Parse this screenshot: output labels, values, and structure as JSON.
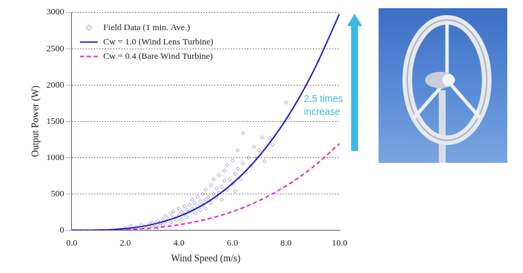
{
  "chart_data": {
    "type": "scatter",
    "x_label": "Wind Speed (m/s)",
    "y_label": "Output Power (W)",
    "xlim": [
      0,
      10
    ],
    "xticks": [
      {
        "value": 0,
        "label": "0.0"
      },
      {
        "value": 2,
        "label": "2.0"
      },
      {
        "value": 4,
        "label": "4.0"
      },
      {
        "value": 6,
        "label": "6.0"
      },
      {
        "value": 8,
        "label": "8.0"
      },
      {
        "value": 10,
        "label": "10.0"
      }
    ],
    "ylim": [
      0,
      3000
    ],
    "yticks": [
      0,
      500,
      1000,
      1500,
      2000,
      2500,
      3000
    ],
    "grid": "y",
    "legend": "upper left",
    "annotation": "2.5 times increase",
    "series": [
      {
        "name": "Field Data (1 min. Ave.)",
        "type": "scatter",
        "marker": "diamond",
        "color": "#7b7bc8",
        "x": [
          1.8,
          2.0,
          2.1,
          2.2,
          2.3,
          2.4,
          2.5,
          2.6,
          2.7,
          2.8,
          2.9,
          3.0,
          3.0,
          3.1,
          3.2,
          3.2,
          3.3,
          3.4,
          3.4,
          3.5,
          3.5,
          3.6,
          3.7,
          3.7,
          3.8,
          3.8,
          3.9,
          4.0,
          4.0,
          4.1,
          4.1,
          4.2,
          4.2,
          4.3,
          4.3,
          4.4,
          4.4,
          4.5,
          4.5,
          4.6,
          4.6,
          4.7,
          4.7,
          4.8,
          4.8,
          4.9,
          4.9,
          5.0,
          5.0,
          5.0,
          5.1,
          5.2,
          5.2,
          5.3,
          5.3,
          5.4,
          5.4,
          5.5,
          5.5,
          5.6,
          5.6,
          5.7,
          5.7,
          5.8,
          5.8,
          5.9,
          6.0,
          6.0,
          6.1,
          6.1,
          6.2,
          6.2,
          6.3,
          6.4,
          6.4,
          6.5,
          6.6,
          6.7,
          6.8,
          6.9,
          7.0,
          7.1,
          7.2,
          7.4,
          7.5,
          8.0,
          8.1,
          9.2
        ],
        "values": [
          10,
          30,
          5,
          60,
          25,
          40,
          15,
          70,
          50,
          30,
          90,
          60,
          110,
          80,
          40,
          130,
          100,
          150,
          70,
          120,
          200,
          160,
          110,
          230,
          180,
          260,
          140,
          200,
          300,
          250,
          150,
          330,
          220,
          280,
          180,
          350,
          260,
          300,
          420,
          240,
          380,
          330,
          460,
          280,
          400,
          500,
          350,
          420,
          300,
          560,
          460,
          380,
          620,
          500,
          700,
          450,
          580,
          520,
          760,
          600,
          420,
          680,
          820,
          560,
          900,
          700,
          640,
          960,
          780,
          540,
          850,
          1100,
          700,
          920,
          1340,
          800,
          1000,
          880,
          1150,
          1000,
          1100,
          1280,
          950,
          1270,
          1180,
          1760,
          1550,
          2330
        ]
      },
      {
        "name": "Cw = 1.0 (Wind Lens Turbine)",
        "type": "line",
        "line_style": "solid",
        "color": "#1c1cc4",
        "x": [
          0,
          1,
          2,
          3,
          4,
          5,
          6,
          7,
          8,
          9,
          10
        ],
        "values": [
          0,
          3,
          24,
          80,
          190,
          372,
          643,
          1022,
          1525,
          2172,
          2980
        ]
      },
      {
        "name": "Cw = 0.4 (Bare Wind Turbine)",
        "type": "line",
        "line_style": "dashed",
        "color": "#e61ec8",
        "x": [
          0,
          1,
          2,
          3,
          4,
          5,
          6,
          7,
          8,
          9,
          10
        ],
        "values": [
          0,
          1,
          10,
          32,
          76,
          149,
          257,
          409,
          610,
          869,
          1192
        ]
      }
    ]
  }
}
